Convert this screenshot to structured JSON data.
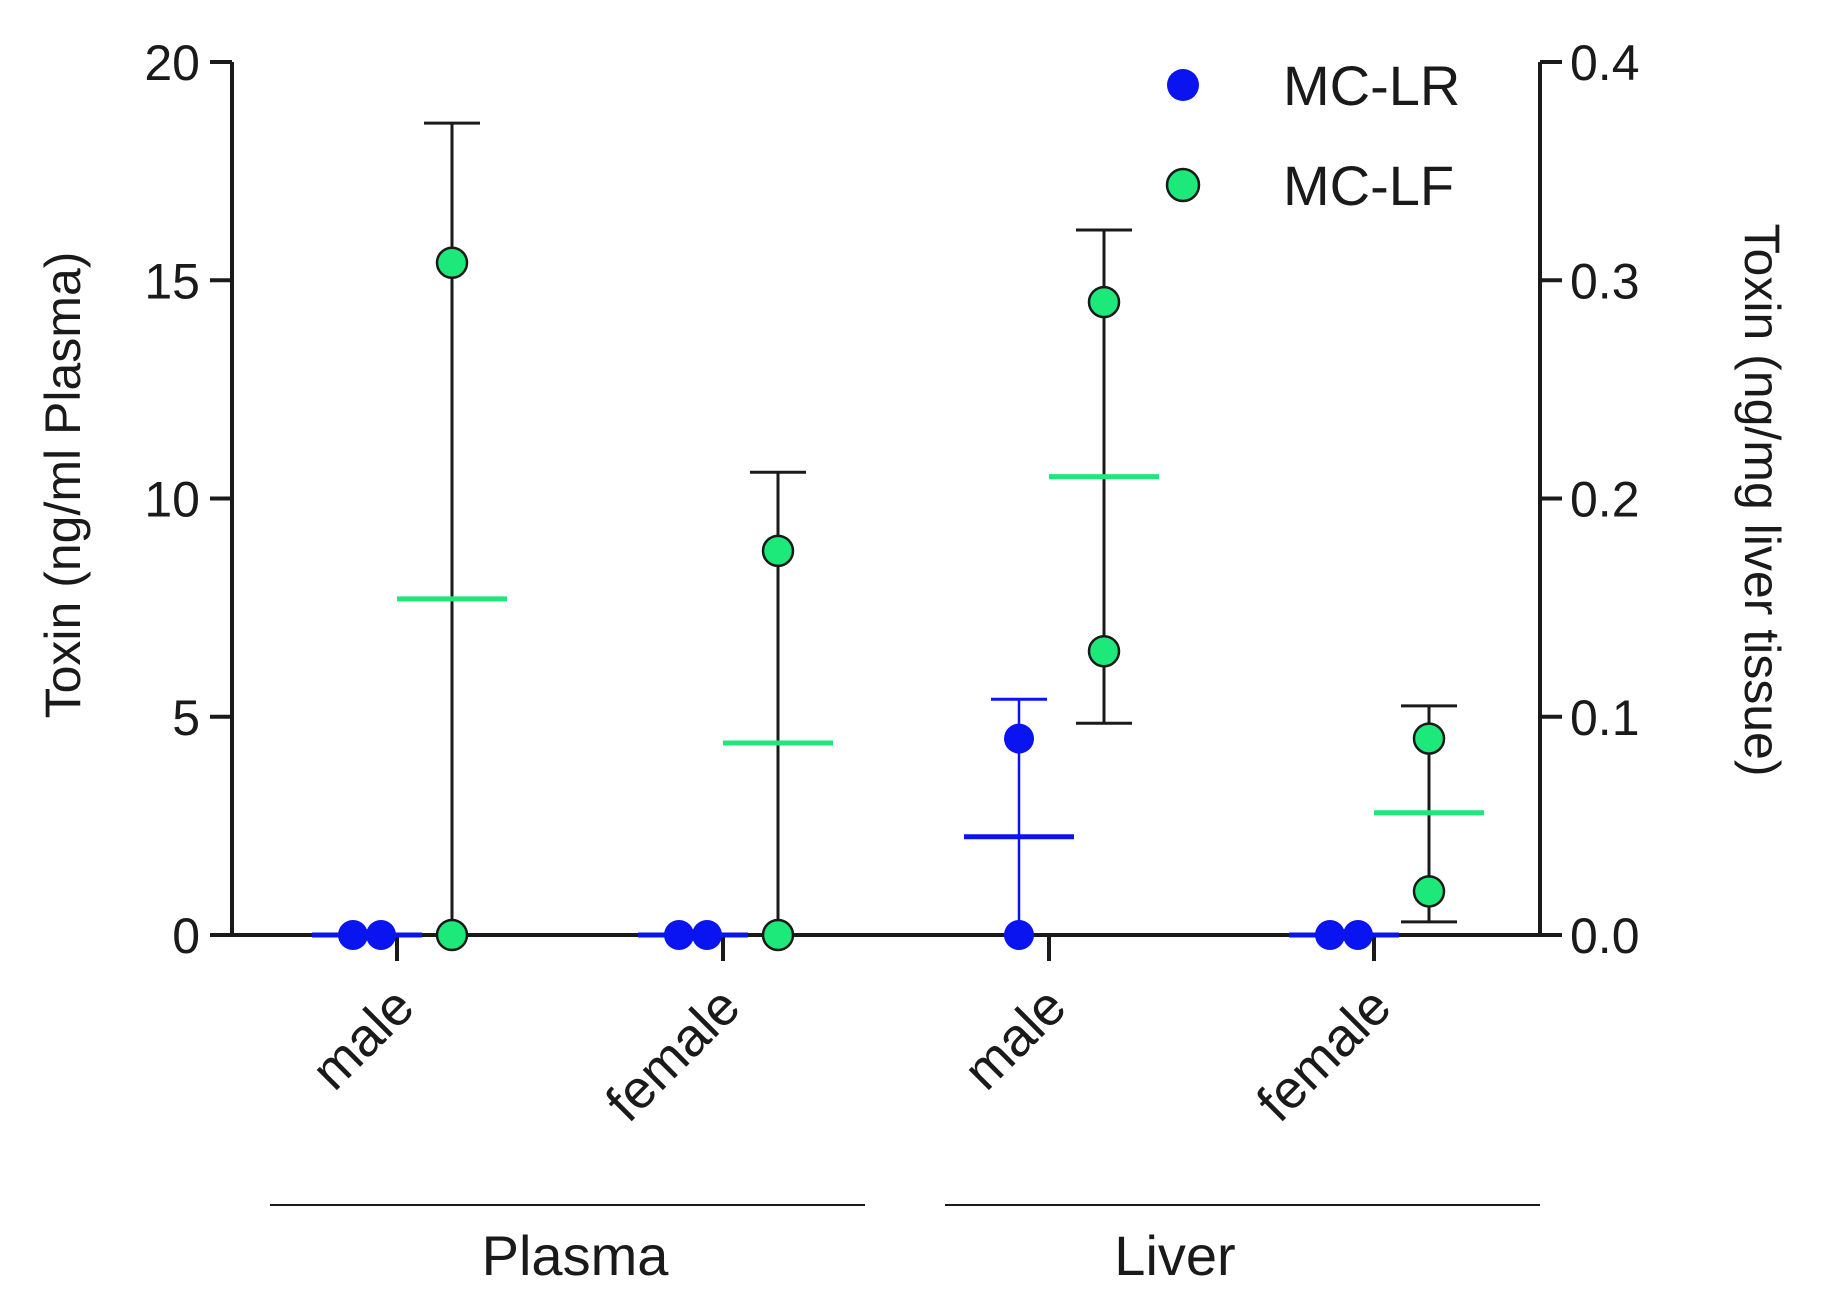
{
  "chart_data": {
    "type": "scatter",
    "left_axis": {
      "label": "Toxin (ng/ml Plasma)",
      "ticks": [
        "0",
        "5",
        "10",
        "15",
        "20"
      ],
      "ylim": [
        0,
        20
      ]
    },
    "right_axis": {
      "label": "Toxin  (ng/mg liver tissue)",
      "ticks": [
        "0.0",
        "0.1",
        "0.2",
        "0.3",
        "0.4"
      ],
      "ylim": [
        0,
        0.4
      ]
    },
    "categories": [
      "male",
      "female",
      "male",
      "female"
    ],
    "groups": [
      {
        "label": "Plasma",
        "categories": [
          0,
          1
        ],
        "axis": "left"
      },
      {
        "label": "Liver",
        "categories": [
          2,
          3
        ],
        "axis": "right"
      }
    ],
    "legend_position": "top-right",
    "series": [
      {
        "name": "MC-LR",
        "color": "#0a14f0",
        "groups": [
          {
            "category": 0,
            "axis": "left",
            "points": [
              0,
              0
            ],
            "mean": 0,
            "error": [
              0,
              0
            ]
          },
          {
            "category": 1,
            "axis": "left",
            "points": [
              0,
              0
            ],
            "mean": 0,
            "error": [
              0,
              0
            ]
          },
          {
            "category": 2,
            "axis": "right",
            "points": [
              0.09,
              0
            ],
            "mean": 0.045,
            "error": [
              0,
              0.108
            ]
          },
          {
            "category": 3,
            "axis": "right",
            "points": [
              0,
              0
            ],
            "mean": 0,
            "error": [
              0,
              0
            ]
          }
        ]
      },
      {
        "name": "MC-LF",
        "color": "#1de87a",
        "groups": [
          {
            "category": 0,
            "axis": "left",
            "points": [
              15.4,
              0
            ],
            "mean": 7.7,
            "error": [
              0,
              18.6
            ]
          },
          {
            "category": 1,
            "axis": "left",
            "points": [
              8.8,
              0
            ],
            "mean": 4.4,
            "error": [
              0,
              10.6
            ]
          },
          {
            "category": 2,
            "axis": "right",
            "points": [
              0.29,
              0.13
            ],
            "mean": 0.21,
            "error": [
              0.097,
              0.323
            ]
          },
          {
            "category": 3,
            "axis": "right",
            "points": [
              0.09,
              0.02
            ],
            "mean": 0.056,
            "error": [
              0.006,
              0.105
            ]
          }
        ]
      }
    ]
  }
}
